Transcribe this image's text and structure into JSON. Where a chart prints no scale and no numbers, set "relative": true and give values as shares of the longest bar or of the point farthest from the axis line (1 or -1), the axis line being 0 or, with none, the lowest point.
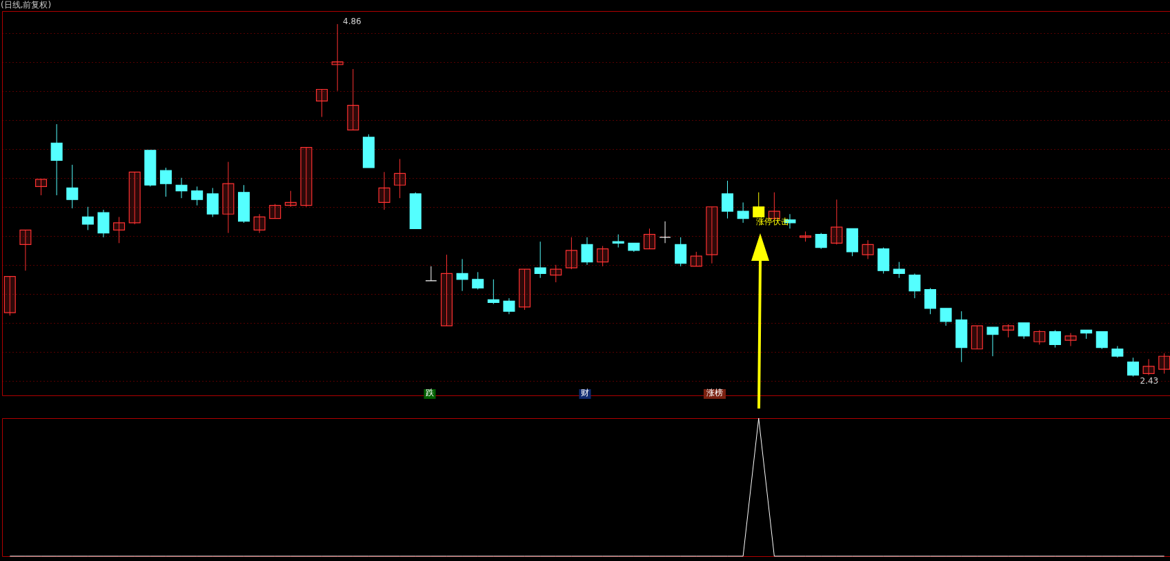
{
  "chart_data": [
    {
      "type": "candlestick",
      "title": "(日线,前复权)",
      "categories": [
        null,
        null,
        null,
        null,
        null,
        null,
        null,
        null,
        null,
        null,
        null,
        null,
        null,
        null,
        null,
        null,
        null,
        null,
        null,
        null,
        null,
        null,
        null,
        null,
        null,
        null,
        null,
        null,
        null,
        null,
        null,
        null,
        null,
        null,
        null,
        null,
        null,
        null,
        null,
        null,
        null,
        null,
        null,
        null,
        null,
        null,
        null,
        null,
        null,
        null,
        null,
        null,
        null,
        null,
        null,
        null,
        null,
        null,
        null,
        null,
        null,
        null,
        null,
        null,
        null,
        null,
        null,
        null,
        null,
        null,
        null,
        null,
        null,
        null,
        null
      ],
      "ohlc": [
        [
          2.87,
          3.12,
          2.85,
          3.12
        ],
        [
          3.34,
          3.44,
          3.16,
          3.44
        ],
        [
          3.74,
          3.79,
          3.68,
          3.79
        ],
        [
          4.04,
          4.17,
          3.68,
          3.92
        ],
        [
          3.73,
          3.89,
          3.59,
          3.65
        ],
        [
          3.53,
          3.6,
          3.44,
          3.48
        ],
        [
          3.56,
          3.58,
          3.39,
          3.42
        ],
        [
          3.44,
          3.53,
          3.35,
          3.49
        ],
        [
          3.49,
          3.84,
          3.48,
          3.84
        ],
        [
          3.99,
          3.99,
          3.74,
          3.75
        ],
        [
          3.85,
          3.87,
          3.67,
          3.76
        ],
        [
          3.75,
          3.8,
          3.66,
          3.71
        ],
        [
          3.71,
          3.74,
          3.61,
          3.65
        ],
        [
          3.69,
          3.73,
          3.53,
          3.55
        ],
        [
          3.55,
          3.91,
          3.42,
          3.76
        ],
        [
          3.7,
          3.75,
          3.49,
          3.5
        ],
        [
          3.44,
          3.55,
          3.42,
          3.53
        ],
        [
          3.52,
          3.62,
          3.52,
          3.61
        ],
        [
          3.61,
          3.71,
          3.6,
          3.63
        ],
        [
          3.61,
          4.01,
          3.6,
          4.01
        ],
        [
          4.33,
          4.41,
          4.22,
          4.41
        ],
        [
          4.58,
          4.86,
          4.4,
          4.6
        ],
        [
          4.13,
          4.55,
          4.13,
          4.3
        ],
        [
          4.08,
          4.1,
          3.87,
          3.87
        ],
        [
          3.63,
          3.84,
          3.58,
          3.73
        ],
        [
          3.75,
          3.93,
          3.66,
          3.83
        ],
        [
          3.69,
          3.7,
          3.45,
          3.45
        ],
        [
          3.09,
          3.19,
          3.09,
          3.09
        ],
        [
          2.78,
          3.27,
          2.78,
          3.14
        ],
        [
          3.14,
          3.24,
          3.02,
          3.1
        ],
        [
          3.1,
          3.15,
          3.03,
          3.04
        ],
        [
          2.96,
          3.1,
          2.93,
          2.94
        ],
        [
          2.95,
          2.97,
          2.86,
          2.88
        ],
        [
          2.91,
          3.17,
          2.89,
          3.17
        ],
        [
          3.18,
          3.36,
          3.11,
          3.14
        ],
        [
          3.13,
          3.2,
          3.08,
          3.17
        ],
        [
          3.18,
          3.39,
          3.17,
          3.3
        ],
        [
          3.34,
          3.39,
          3.2,
          3.22
        ],
        [
          3.22,
          3.33,
          3.19,
          3.31
        ],
        [
          3.36,
          3.41,
          3.32,
          3.35
        ],
        [
          3.35,
          3.35,
          3.29,
          3.3
        ],
        [
          3.31,
          3.45,
          3.31,
          3.41
        ],
        [
          3.39,
          3.5,
          3.35,
          3.39
        ],
        [
          3.34,
          3.39,
          3.19,
          3.21
        ],
        [
          3.19,
          3.29,
          3.19,
          3.26
        ],
        [
          3.27,
          3.6,
          3.21,
          3.6
        ],
        [
          3.69,
          3.78,
          3.52,
          3.57
        ],
        [
          3.57,
          3.63,
          3.49,
          3.52
        ],
        [
          3.6,
          3.7,
          3.53,
          3.53
        ],
        [
          3.52,
          3.7,
          3.52,
          3.57
        ],
        [
          3.51,
          3.55,
          3.45,
          3.49
        ],
        [
          3.39,
          3.43,
          3.36,
          3.4
        ],
        [
          3.41,
          3.42,
          3.31,
          3.32
        ],
        [
          3.35,
          3.65,
          3.34,
          3.46
        ],
        [
          3.45,
          3.45,
          3.26,
          3.29
        ],
        [
          3.27,
          3.37,
          3.24,
          3.34
        ],
        [
          3.31,
          3.32,
          3.14,
          3.16
        ],
        [
          3.17,
          3.22,
          3.11,
          3.14
        ],
        [
          3.13,
          3.14,
          2.97,
          3.02
        ],
        [
          3.03,
          3.04,
          2.86,
          2.9
        ],
        [
          2.9,
          2.9,
          2.78,
          2.81
        ],
        [
          2.82,
          2.88,
          2.53,
          2.63
        ],
        [
          2.62,
          2.78,
          2.62,
          2.78
        ],
        [
          2.77,
          2.77,
          2.57,
          2.72
        ],
        [
          2.75,
          2.79,
          2.7,
          2.78
        ],
        [
          2.8,
          2.8,
          2.69,
          2.71
        ],
        [
          2.67,
          2.75,
          2.65,
          2.74
        ],
        [
          2.74,
          2.75,
          2.63,
          2.65
        ],
        [
          2.68,
          2.73,
          2.64,
          2.71
        ],
        [
          2.75,
          2.75,
          2.69,
          2.73
        ],
        [
          2.74,
          2.74,
          2.62,
          2.63
        ],
        [
          2.62,
          2.64,
          2.56,
          2.57
        ],
        [
          2.53,
          2.56,
          2.43,
          2.44
        ],
        [
          2.45,
          2.55,
          2.44,
          2.5
        ],
        [
          2.48,
          2.59,
          2.45,
          2.57
        ]
      ],
      "colors": [
        "#ff3232",
        "#ff3232",
        "#ff3232",
        "#54ffff",
        "#54ffff",
        "#54ffff",
        "#54ffff",
        "#ff3232",
        "#ff3232",
        "#54ffff",
        "#54ffff",
        "#54ffff",
        "#54ffff",
        "#54ffff",
        "#ff3232",
        "#54ffff",
        "#ff3232",
        "#ff3232",
        "#ff3232",
        "#ff3232",
        "#ff3232",
        "#ff3232",
        "#ff3232",
        "#54ffff",
        "#ff3232",
        "#ff3232",
        "#54ffff",
        "#ffffff",
        "#ff3232",
        "#54ffff",
        "#54ffff",
        "#54ffff",
        "#54ffff",
        "#ff3232",
        "#54ffff",
        "#ff3232",
        "#ff3232",
        "#54ffff",
        "#ff3232",
        "#54ffff",
        "#54ffff",
        "#ff3232",
        "#ffffff",
        "#54ffff",
        "#ff3232",
        "#ff3232",
        "#54ffff",
        "#54ffff",
        "#ffff00",
        "#ff3232",
        "#54ffff",
        "#ff3232",
        "#54ffff",
        "#ff3232",
        "#54ffff",
        "#ff3232",
        "#54ffff",
        "#54ffff",
        "#54ffff",
        "#54ffff",
        "#54ffff",
        "#54ffff",
        "#ff3232",
        "#54ffff",
        "#ff3232",
        "#54ffff",
        "#ff3232",
        "#54ffff",
        "#ff3232",
        "#54ffff",
        "#54ffff",
        "#54ffff",
        "#54ffff",
        "#ff3232",
        "#ff3232"
      ],
      "ylim": [
        2.3,
        4.95
      ],
      "yticks": [
        {
          "value": 4.8,
          "label": null
        },
        {
          "value": 4.6,
          "label": null
        },
        {
          "value": 4.4,
          "label": null
        },
        {
          "value": 4.2,
          "label": null
        },
        {
          "value": 4.0,
          "label": null
        },
        {
          "value": 3.8,
          "label": null
        },
        {
          "value": 3.6,
          "label": null
        },
        {
          "value": 3.4,
          "label": null
        },
        {
          "value": 3.2,
          "label": null
        },
        {
          "value": 3.0,
          "label": null
        },
        {
          "value": 2.8,
          "label": null
        },
        {
          "value": 2.6,
          "label": null
        },
        {
          "value": 2.4,
          "label": null
        }
      ],
      "grid": "y",
      "annotations": [
        "4.86",
        {
          "text": "2.43",
          "y": 2.43
        },
        "涨停伏击",
        "跌",
        "财",
        "涨榜"
      ]
    },
    {
      "type": "line",
      "relative": true,
      "categories": [
        null,
        null,
        null,
        null,
        null,
        null,
        null,
        null,
        null,
        null,
        null,
        null,
        null,
        null,
        null,
        null,
        null,
        null,
        null,
        null,
        null,
        null,
        null,
        null,
        null,
        null,
        null,
        null,
        null,
        null,
        null,
        null,
        null,
        null,
        null,
        null,
        null,
        null,
        null,
        null,
        null,
        null,
        null,
        null,
        null,
        null,
        null,
        null,
        null,
        null,
        null,
        null,
        null,
        null,
        null,
        null,
        null,
        null,
        null,
        null,
        null,
        null,
        null,
        null,
        null,
        null,
        null,
        null,
        null,
        null,
        null,
        null,
        null,
        null,
        null
      ],
      "series": [
        {
          "color": "#ffffff",
          "values": [
            0,
            0,
            0,
            0,
            0,
            0,
            0,
            0,
            0,
            0,
            0,
            0,
            0,
            0,
            0,
            0,
            0,
            0,
            0,
            0,
            0,
            0,
            0,
            0,
            0,
            0,
            0,
            0,
            0,
            0,
            0,
            0,
            0,
            0,
            0,
            0,
            0,
            0,
            0,
            0,
            0,
            0,
            0,
            0,
            0,
            0,
            0,
            0,
            1,
            0,
            0,
            0,
            0,
            0,
            0,
            0,
            0,
            0,
            0,
            0,
            0,
            0,
            0,
            0,
            0,
            0,
            0,
            0,
            0,
            0,
            0,
            0,
            0,
            0,
            0
          ]
        }
      ]
    }
  ]
}
